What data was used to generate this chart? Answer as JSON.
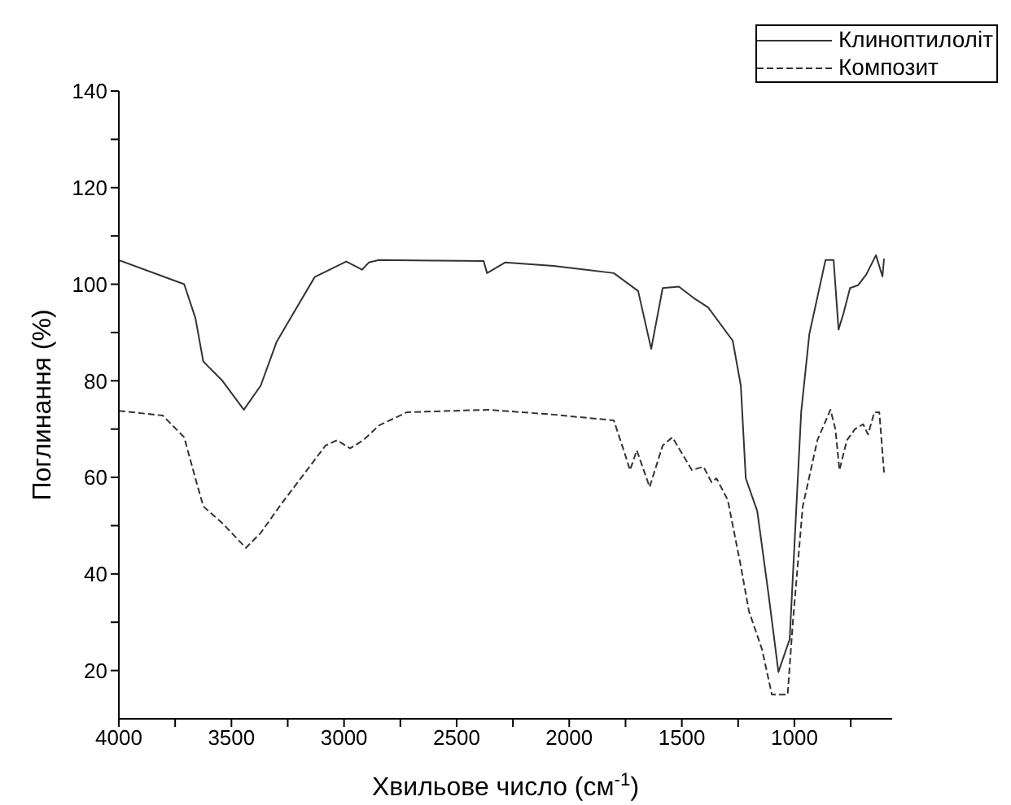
{
  "chart_data": {
    "type": "line",
    "xlabel": "Хвильове число (см$^{-1}$)",
    "ylabel": "Поглинання (%)",
    "xlim": [
      4000,
      566
    ],
    "ylim": [
      10,
      140
    ],
    "xticks": [
      4000,
      {
        "value": 3750,
        "label": null
      },
      3500,
      {
        "value": 3250,
        "label": null
      },
      3000,
      {
        "value": 2750,
        "label": null
      },
      2500,
      {
        "value": 2250,
        "label": null
      },
      2000,
      {
        "value": 1750,
        "label": null
      },
      1500,
      {
        "value": 1250,
        "label": null
      },
      1000,
      {
        "value": 750,
        "label": null
      }
    ],
    "yticks": [
      20,
      {
        "value": 30,
        "label": null
      },
      40,
      {
        "value": 50,
        "label": null
      },
      60,
      {
        "value": 70,
        "label": null
      },
      80,
      {
        "value": 90,
        "label": null
      },
      100,
      {
        "value": 110,
        "label": null
      },
      120,
      {
        "value": 130,
        "label": null
      },
      140
    ],
    "grid": false,
    "legend": "top right",
    "marker": "none",
    "series": [
      {
        "name": "Клиноптилоліт",
        "color": "#333333",
        "line_style": "solid",
        "x": [
          4000,
          3710,
          3660,
          3625,
          3540,
          3445,
          3370,
          3300,
          3225,
          3130,
          2990,
          2920,
          2890,
          2845,
          2380,
          2365,
          2285,
          2070,
          1925,
          1802,
          1694,
          1636,
          1585,
          1513,
          1440,
          1383,
          1274,
          1238,
          1216,
          1165,
          1115,
          1071,
          1021,
          970,
          934,
          862,
          826,
          804,
          782,
          753,
          717,
          681,
          638,
          609,
          602
        ],
        "values": [
          105,
          100,
          93,
          84,
          80,
          74,
          79,
          88,
          94,
          101.5,
          104.7,
          103,
          104.5,
          105,
          104.8,
          102.3,
          104.5,
          103.8,
          103,
          102.3,
          98.6,
          86.6,
          99.2,
          99.5,
          96.9,
          95.2,
          88.3,
          79,
          59.8,
          53,
          35.8,
          19.7,
          26.5,
          73.5,
          89.6,
          105,
          105,
          90.6,
          94,
          99.2,
          99.8,
          102,
          106,
          101.6,
          105.3
        ]
      },
      {
        "name": "Композит",
        "color": "#333333",
        "line_style": "dashed",
        "x": [
          4000,
          3805,
          3710,
          3660,
          3625,
          3540,
          3436,
          3370,
          3277,
          3176,
          3082,
          3031,
          2973,
          2915,
          2843,
          2720,
          2359,
          2070,
          1802,
          1758,
          1730,
          1700,
          1643,
          1585,
          1542,
          1455,
          1404,
          1368,
          1346,
          1296,
          1238,
          1202,
          1144,
          1100,
          1030,
          1007,
          963,
          898,
          840,
          818,
          800,
          767,
          731,
          695,
          673,
          645,
          623,
          602
        ],
        "values": [
          73.8,
          72.8,
          68.3,
          59.8,
          54,
          50.5,
          45.4,
          48.5,
          54.6,
          60.8,
          66.6,
          67.7,
          66,
          67.7,
          70.8,
          73.5,
          74,
          73,
          71.8,
          65.6,
          61.5,
          65.6,
          58,
          66.6,
          68.3,
          61.5,
          62.2,
          59,
          59.8,
          55.3,
          41.6,
          32.3,
          24.4,
          15,
          15,
          30,
          54,
          67.7,
          74,
          70,
          61.5,
          67.7,
          70,
          71,
          68.9,
          73.5,
          73.5,
          61
        ]
      }
    ]
  }
}
